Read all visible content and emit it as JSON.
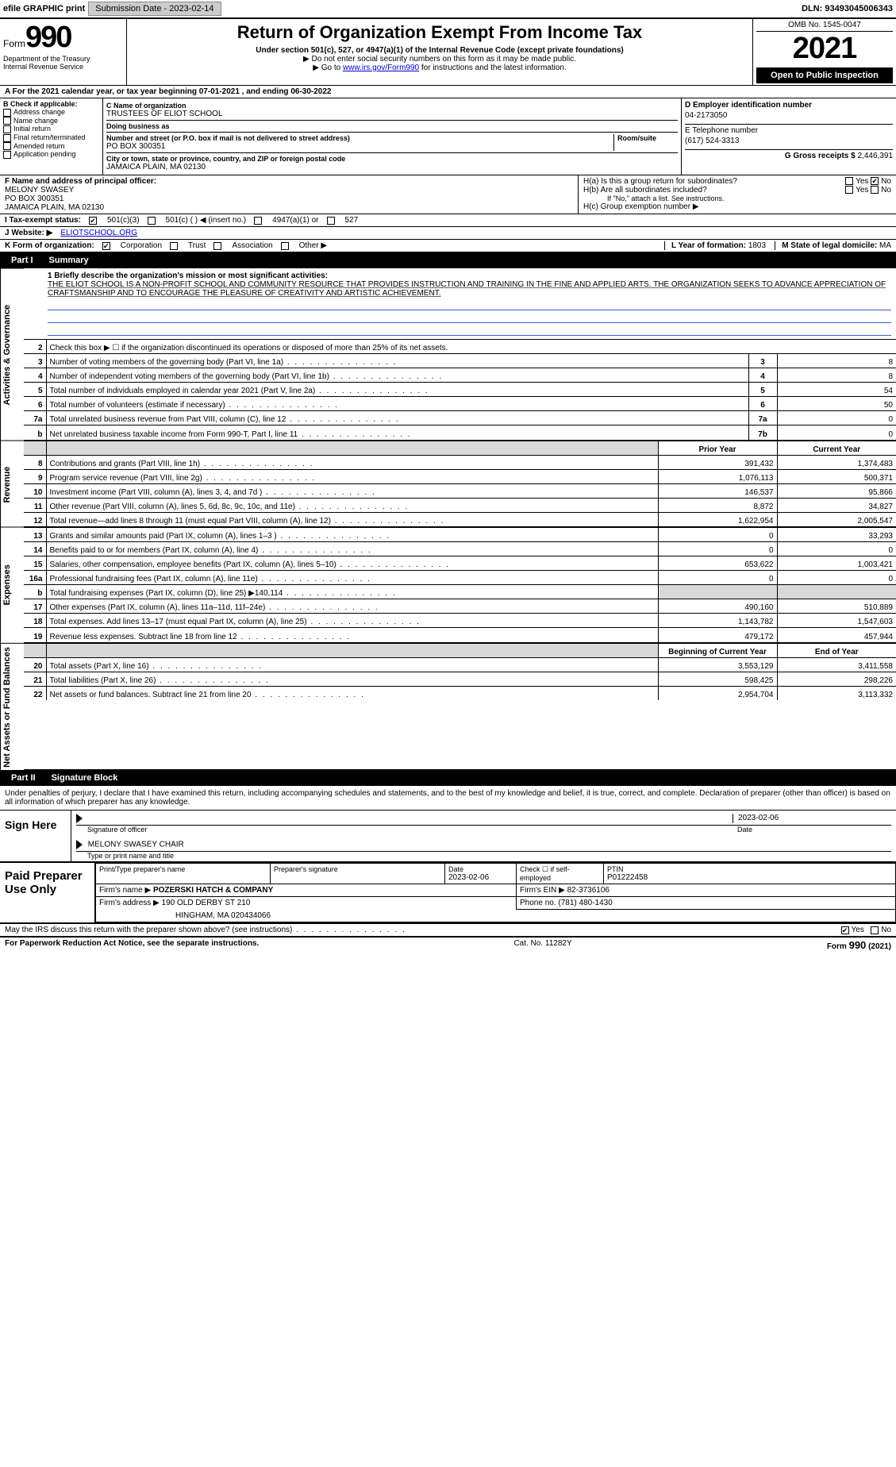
{
  "topbar": {
    "efile_label": "efile GRAPHIC print",
    "submission_btn": "Submission Date - 2023-02-14",
    "dln": "DLN: 93493045006343"
  },
  "header": {
    "form_label": "Form",
    "form_number": "990",
    "title": "Return of Organization Exempt From Income Tax",
    "subtitle": "Under section 501(c), 527, or 4947(a)(1) of the Internal Revenue Code (except private foundations)",
    "note1": "▶ Do not enter social security numbers on this form as it may be made public.",
    "note2_prefix": "▶ Go to ",
    "note2_link": "www.irs.gov/Form990",
    "note2_suffix": " for instructions and the latest information.",
    "dept": "Department of the Treasury",
    "irs": "Internal Revenue Service",
    "omb": "OMB No. 1545-0047",
    "year": "2021",
    "open_public": "Open to Public Inspection"
  },
  "line_a": {
    "text": "A For the 2021 calendar year, or tax year beginning 07-01-2021    , and ending 06-30-2022"
  },
  "col_b": {
    "header": "B Check if applicable:",
    "items": [
      "Address change",
      "Name change",
      "Initial return",
      "Final return/terminated",
      "Amended return",
      "Application pending"
    ]
  },
  "col_c": {
    "name_label": "C Name of organization",
    "name": "TRUSTEES OF ELIOT SCHOOL",
    "dba_label": "Doing business as",
    "dba": "",
    "street_label": "Number and street (or P.O. box if mail is not delivered to street address)",
    "room_label": "Room/suite",
    "street": "PO BOX 300351",
    "city_label": "City or town, state or province, country, and ZIP or foreign postal code",
    "city": "JAMAICA PLAIN, MA  02130"
  },
  "col_de": {
    "d_label": "D Employer identification number",
    "d_val": "04-2173050",
    "e_label": "E Telephone number",
    "e_val": "(617) 524-3313",
    "g_label": "G Gross receipts $",
    "g_val": "2,446,391"
  },
  "block_f": {
    "f_label": "F  Name and address of principal officer:",
    "f_name": "MELONY SWASEY",
    "f_street": "PO BOX 300351",
    "f_city": "JAMAICA PLAIN, MA  02130"
  },
  "block_h": {
    "ha": "H(a)  Is this a group return for subordinates?",
    "hb": "H(b)  Are all subordinates included?",
    "hb_note": "If \"No,\" attach a list. See instructions.",
    "hc": "H(c)  Group exemption number ▶",
    "yes": "Yes",
    "no": "No"
  },
  "row_i": {
    "label": "I  Tax-exempt status:",
    "opts": [
      "501(c)(3)",
      "501(c) (  ) ◀ (insert no.)",
      "4947(a)(1) or",
      "527"
    ]
  },
  "row_j": {
    "label": "J  Website: ▶",
    "val": "ELIOTSCHOOL.ORG"
  },
  "row_k": {
    "label": "K Form of organization:",
    "opts": [
      "Corporation",
      "Trust",
      "Association",
      "Other ▶"
    ],
    "l_label": "L Year of formation: ",
    "l_val": "1803",
    "m_label": "M State of legal domicile: ",
    "m_val": "MA"
  },
  "parts": {
    "p1": "Part I",
    "p1_title": "Summary",
    "p2": "Part II",
    "p2_title": "Signature Block"
  },
  "sections": {
    "gov": "Activities & Governance",
    "rev": "Revenue",
    "exp": "Expenses",
    "net": "Net Assets or Fund Balances"
  },
  "mission": {
    "label": "1  Briefly describe the organization's mission or most significant activities:",
    "text": "THE ELIOT SCHOOL IS A NON-PROFIT SCHOOL AND COMMUNITY RESOURCE THAT PROVIDES INSTRUCTION AND TRAINING IN THE FINE AND APPLIED ARTS. THE ORGANIZATION SEEKS TO ADVANCE APPRECIATION OF CRAFTSMANSHIP AND TO ENCOURAGE THE PLEASURE OF CREATIVITY AND ARTISTIC ACHIEVEMENT."
  },
  "gov_rows": [
    {
      "n": "2",
      "text": "Check this box ▶ ☐  if the organization discontinued its operations or disposed of more than 25% of its net assets.",
      "box": "",
      "val": ""
    },
    {
      "n": "3",
      "text": "Number of voting members of the governing body (Part VI, line 1a)",
      "box": "3",
      "val": "8"
    },
    {
      "n": "4",
      "text": "Number of independent voting members of the governing body (Part VI, line 1b)",
      "box": "4",
      "val": "8"
    },
    {
      "n": "5",
      "text": "Total number of individuals employed in calendar year 2021 (Part V, line 2a)",
      "box": "5",
      "val": "54"
    },
    {
      "n": "6",
      "text": "Total number of volunteers (estimate if necessary)",
      "box": "6",
      "val": "50"
    },
    {
      "n": "7a",
      "text": "Total unrelated business revenue from Part VIII, column (C), line 12",
      "box": "7a",
      "val": "0"
    },
    {
      "n": "b",
      "text": "Net unrelated business taxable income from Form 990-T, Part I, line 11",
      "box": "7b",
      "val": "0"
    }
  ],
  "two_col_header": {
    "prior": "Prior Year",
    "current": "Current Year"
  },
  "rev_rows": [
    {
      "n": "8",
      "text": "Contributions and grants (Part VIII, line 1h)",
      "p": "391,432",
      "c": "1,374,483"
    },
    {
      "n": "9",
      "text": "Program service revenue (Part VIII, line 2g)",
      "p": "1,076,113",
      "c": "500,371"
    },
    {
      "n": "10",
      "text": "Investment income (Part VIII, column (A), lines 3, 4, and 7d )",
      "p": "146,537",
      "c": "95,866"
    },
    {
      "n": "11",
      "text": "Other revenue (Part VIII, column (A), lines 5, 6d, 8c, 9c, 10c, and 11e)",
      "p": "8,872",
      "c": "34,827"
    },
    {
      "n": "12",
      "text": "Total revenue—add lines 8 through 11 (must equal Part VIII, column (A), line 12)",
      "p": "1,622,954",
      "c": "2,005,547"
    }
  ],
  "exp_rows": [
    {
      "n": "13",
      "text": "Grants and similar amounts paid (Part IX, column (A), lines 1–3 )",
      "p": "0",
      "c": "33,293"
    },
    {
      "n": "14",
      "text": "Benefits paid to or for members (Part IX, column (A), line 4)",
      "p": "0",
      "c": "0"
    },
    {
      "n": "15",
      "text": "Salaries, other compensation, employee benefits (Part IX, column (A), lines 5–10)",
      "p": "653,622",
      "c": "1,003,421"
    },
    {
      "n": "16a",
      "text": "Professional fundraising fees (Part IX, column (A), line 11e)",
      "p": "0",
      "c": "0"
    },
    {
      "n": "b",
      "text": "Total fundraising expenses (Part IX, column (D), line 25) ▶140,114",
      "p": "",
      "c": "",
      "shade": true
    },
    {
      "n": "17",
      "text": "Other expenses (Part IX, column (A), lines 11a–11d, 11f–24e)",
      "p": "490,160",
      "c": "510,889"
    },
    {
      "n": "18",
      "text": "Total expenses. Add lines 13–17 (must equal Part IX, column (A), line 25)",
      "p": "1,143,782",
      "c": "1,547,603"
    },
    {
      "n": "19",
      "text": "Revenue less expenses. Subtract line 18 from line 12",
      "p": "479,172",
      "c": "457,944"
    }
  ],
  "net_header": {
    "prior": "Beginning of Current Year",
    "current": "End of Year"
  },
  "net_rows": [
    {
      "n": "20",
      "text": "Total assets (Part X, line 16)",
      "p": "3,553,129",
      "c": "3,411,558"
    },
    {
      "n": "21",
      "text": "Total liabilities (Part X, line 26)",
      "p": "598,425",
      "c": "298,226"
    },
    {
      "n": "22",
      "text": "Net assets or fund balances. Subtract line 21 from line 20",
      "p": "2,954,704",
      "c": "3,113,332"
    }
  ],
  "sig": {
    "perjury": "Under penalties of perjury, I declare that I have examined this return, including accompanying schedules and statements, and to the best of my knowledge and belief, it is true, correct, and complete. Declaration of preparer (other than officer) is based on all information of which preparer has any knowledge.",
    "sign_here": "Sign Here",
    "sig_officer": "Signature of officer",
    "date": "Date",
    "date_val": "2023-02-06",
    "name_title": "MELONY SWASEY CHAIR",
    "type_name": "Type or print name and title"
  },
  "prep": {
    "label": "Paid Preparer Use Only",
    "h1": "Print/Type preparer's name",
    "h2": "Preparer's signature",
    "h3": "Date",
    "h3_val": "2023-02-06",
    "h4": "Check ☐ if self-employed",
    "h5": "PTIN",
    "h5_val": "P01222458",
    "firm_name_label": "Firm's name    ▶",
    "firm_name": "POZERSKI HATCH & COMPANY",
    "firm_ein_label": "Firm's EIN ▶",
    "firm_ein": "82-3736106",
    "firm_addr_label": "Firm's address ▶",
    "firm_addr1": "190 OLD DERBY ST 210",
    "firm_addr2": "HINGHAM, MA  020434066",
    "phone_label": "Phone no.",
    "phone": "(781) 480-1430"
  },
  "may_discuss": {
    "text": "May the IRS discuss this return with the preparer shown above? (see instructions)",
    "yes": "Yes",
    "no": "No"
  },
  "footer": {
    "left": "For Paperwork Reduction Act Notice, see the separate instructions.",
    "mid": "Cat. No. 11282Y",
    "right": "Form 990 (2021)"
  },
  "colors": {
    "link": "#0000cc",
    "shade": "#d9d9d9",
    "rule_blue": "#3a5fcd"
  }
}
